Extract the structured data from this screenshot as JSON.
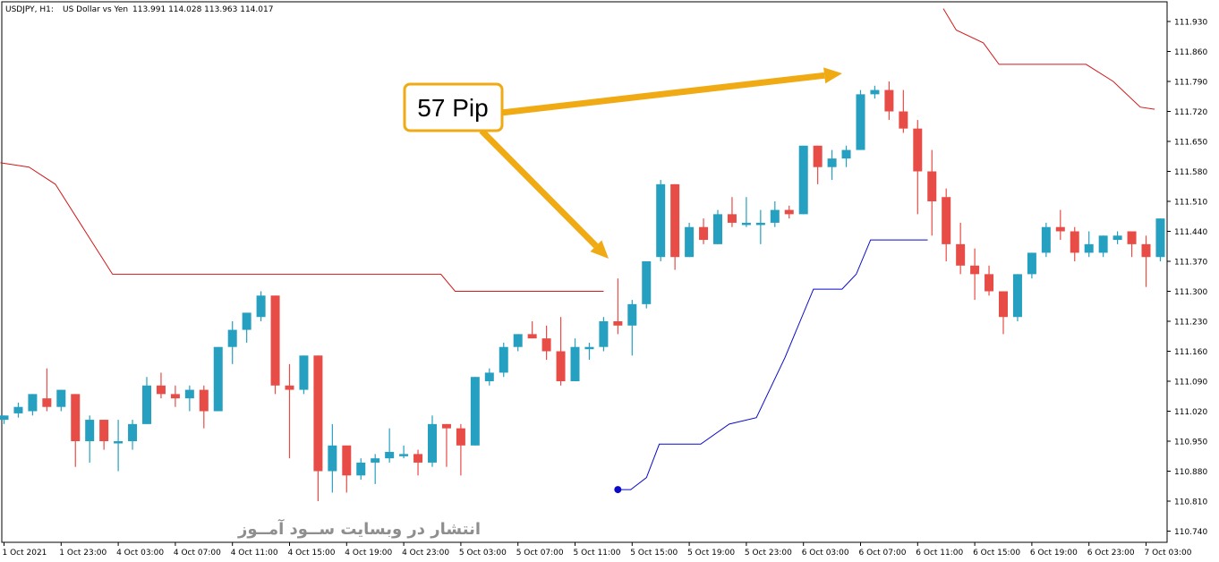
{
  "chart_data": {
    "type": "candlestick",
    "header": {
      "symbol": "USDJPY, H1:",
      "description": "US Dollar vs Yen",
      "ohlc": "113.991 114.028 113.963 114.017"
    },
    "ylim": [
      110.68,
      111.955
    ],
    "y_ticks": [
      "111.930",
      "111.860",
      "111.790",
      "111.720",
      "111.650",
      "111.580",
      "111.510",
      "111.440",
      "111.370",
      "111.300",
      "111.230",
      "111.160",
      "111.090",
      "111.020",
      "110.950",
      "110.880",
      "110.810",
      "110.740"
    ],
    "x_ticks": [
      "1 Oct 2021",
      "1 Oct 23:00",
      "4 Oct 03:00",
      "4 Oct 07:00",
      "4 Oct 11:00",
      "4 Oct 15:00",
      "4 Oct 19:00",
      "4 Oct 23:00",
      "5 Oct 03:00",
      "5 Oct 07:00",
      "5 Oct 11:00",
      "5 Oct 15:00",
      "5 Oct 19:00",
      "5 Oct 23:00",
      "6 Oct 03:00",
      "6 Oct 07:00",
      "6 Oct 11:00",
      "6 Oct 15:00",
      "6 Oct 19:00",
      "6 Oct 23:00",
      "7 Oct 03:00"
    ],
    "colors": {
      "bull": "#26a0c0",
      "bear": "#e84c46",
      "upper_line": "#d11a1a",
      "lower_line": "#0a0ac8",
      "arrow": "#f0aa14",
      "grid_axis": "#000000"
    },
    "candles": [
      {
        "o": 111.0,
        "h": 111.01,
        "l": 110.99,
        "c": 111.01
      },
      {
        "o": 111.015,
        "h": 111.04,
        "l": 111.005,
        "c": 111.03
      },
      {
        "o": 111.02,
        "h": 111.06,
        "l": 111.01,
        "c": 111.06
      },
      {
        "o": 111.05,
        "h": 111.12,
        "l": 111.02,
        "c": 111.03
      },
      {
        "o": 111.03,
        "h": 111.07,
        "l": 111.02,
        "c": 111.07
      },
      {
        "o": 111.06,
        "h": 111.06,
        "l": 110.89,
        "c": 110.95
      },
      {
        "o": 110.95,
        "h": 111.01,
        "l": 110.9,
        "c": 111.0
      },
      {
        "o": 111.0,
        "h": 111.0,
        "l": 110.93,
        "c": 110.95
      },
      {
        "o": 110.95,
        "h": 111.0,
        "l": 110.88,
        "c": 110.95
      },
      {
        "o": 110.95,
        "h": 111.0,
        "l": 110.93,
        "c": 110.99
      },
      {
        "o": 110.99,
        "h": 111.1,
        "l": 110.99,
        "c": 111.08
      },
      {
        "o": 111.08,
        "h": 111.11,
        "l": 111.05,
        "c": 111.06
      },
      {
        "o": 111.06,
        "h": 111.08,
        "l": 111.03,
        "c": 111.05
      },
      {
        "o": 111.05,
        "h": 111.08,
        "l": 111.02,
        "c": 111.07
      },
      {
        "o": 111.07,
        "h": 111.08,
        "l": 110.98,
        "c": 111.02
      },
      {
        "o": 111.02,
        "h": 111.17,
        "l": 111.02,
        "c": 111.17
      },
      {
        "o": 111.17,
        "h": 111.23,
        "l": 111.13,
        "c": 111.21
      },
      {
        "o": 111.21,
        "h": 111.25,
        "l": 111.18,
        "c": 111.25
      },
      {
        "o": 111.24,
        "h": 111.3,
        "l": 111.23,
        "c": 111.29
      },
      {
        "o": 111.29,
        "h": 111.29,
        "l": 111.06,
        "c": 111.08
      },
      {
        "o": 111.08,
        "h": 111.13,
        "l": 110.91,
        "c": 111.07
      },
      {
        "o": 111.07,
        "h": 111.15,
        "l": 111.06,
        "c": 111.15
      },
      {
        "o": 111.15,
        "h": 111.15,
        "l": 110.81,
        "c": 110.88
      },
      {
        "o": 110.88,
        "h": 110.99,
        "l": 110.83,
        "c": 110.94
      },
      {
        "o": 110.94,
        "h": 110.94,
        "l": 110.83,
        "c": 110.87
      },
      {
        "o": 110.87,
        "h": 110.91,
        "l": 110.86,
        "c": 110.9
      },
      {
        "o": 110.9,
        "h": 110.92,
        "l": 110.85,
        "c": 110.91
      },
      {
        "o": 110.91,
        "h": 110.98,
        "l": 110.9,
        "c": 110.925
      },
      {
        "o": 110.92,
        "h": 110.94,
        "l": 110.91,
        "c": 110.92
      },
      {
        "o": 110.92,
        "h": 110.93,
        "l": 110.87,
        "c": 110.9
      },
      {
        "o": 110.9,
        "h": 111.01,
        "l": 110.89,
        "c": 110.99
      },
      {
        "o": 110.99,
        "h": 110.99,
        "l": 110.89,
        "c": 110.98
      },
      {
        "o": 110.98,
        "h": 110.99,
        "l": 110.87,
        "c": 110.94
      },
      {
        "o": 110.94,
        "h": 111.1,
        "l": 110.94,
        "c": 111.1
      },
      {
        "o": 111.09,
        "h": 111.12,
        "l": 111.08,
        "c": 111.11
      },
      {
        "o": 111.11,
        "h": 111.18,
        "l": 111.1,
        "c": 111.17
      },
      {
        "o": 111.17,
        "h": 111.2,
        "l": 111.16,
        "c": 111.2
      },
      {
        "o": 111.2,
        "h": 111.23,
        "l": 111.19,
        "c": 111.19
      },
      {
        "o": 111.19,
        "h": 111.22,
        "l": 111.14,
        "c": 111.16
      },
      {
        "o": 111.16,
        "h": 111.24,
        "l": 111.08,
        "c": 111.09
      },
      {
        "o": 111.09,
        "h": 111.19,
        "l": 111.09,
        "c": 111.17
      },
      {
        "o": 111.17,
        "h": 111.18,
        "l": 111.14,
        "c": 111.17
      },
      {
        "o": 111.17,
        "h": 111.24,
        "l": 111.16,
        "c": 111.23
      },
      {
        "o": 111.23,
        "h": 111.33,
        "l": 111.2,
        "c": 111.22
      },
      {
        "o": 111.22,
        "h": 111.28,
        "l": 111.15,
        "c": 111.27
      },
      {
        "o": 111.27,
        "h": 111.37,
        "l": 111.26,
        "c": 111.37
      },
      {
        "o": 111.38,
        "h": 111.56,
        "l": 111.37,
        "c": 111.55
      },
      {
        "o": 111.55,
        "h": 111.55,
        "l": 111.35,
        "c": 111.38
      },
      {
        "o": 111.38,
        "h": 111.46,
        "l": 111.38,
        "c": 111.45
      },
      {
        "o": 111.45,
        "h": 111.47,
        "l": 111.41,
        "c": 111.42
      },
      {
        "o": 111.41,
        "h": 111.49,
        "l": 111.41,
        "c": 111.48
      },
      {
        "o": 111.48,
        "h": 111.52,
        "l": 111.45,
        "c": 111.46
      },
      {
        "o": 111.46,
        "h": 111.52,
        "l": 111.45,
        "c": 111.46
      },
      {
        "o": 111.46,
        "h": 111.49,
        "l": 111.41,
        "c": 111.46
      },
      {
        "o": 111.46,
        "h": 111.51,
        "l": 111.45,
        "c": 111.49
      },
      {
        "o": 111.49,
        "h": 111.5,
        "l": 111.47,
        "c": 111.48
      },
      {
        "o": 111.48,
        "h": 111.64,
        "l": 111.48,
        "c": 111.64
      },
      {
        "o": 111.64,
        "h": 111.64,
        "l": 111.55,
        "c": 111.59
      },
      {
        "o": 111.59,
        "h": 111.63,
        "l": 111.56,
        "c": 111.61
      },
      {
        "o": 111.61,
        "h": 111.64,
        "l": 111.59,
        "c": 111.63
      },
      {
        "o": 111.63,
        "h": 111.77,
        "l": 111.63,
        "c": 111.76
      },
      {
        "o": 111.76,
        "h": 111.78,
        "l": 111.75,
        "c": 111.77
      },
      {
        "o": 111.77,
        "h": 111.79,
        "l": 111.7,
        "c": 111.72
      },
      {
        "o": 111.72,
        "h": 111.77,
        "l": 111.67,
        "c": 111.68
      },
      {
        "o": 111.68,
        "h": 111.7,
        "l": 111.48,
        "c": 111.58
      },
      {
        "o": 111.58,
        "h": 111.63,
        "l": 111.43,
        "c": 111.51
      },
      {
        "o": 111.52,
        "h": 111.54,
        "l": 111.37,
        "c": 111.41
      },
      {
        "o": 111.41,
        "h": 111.46,
        "l": 111.34,
        "c": 111.36
      },
      {
        "o": 111.36,
        "h": 111.4,
        "l": 111.28,
        "c": 111.34
      },
      {
        "o": 111.34,
        "h": 111.36,
        "l": 111.29,
        "c": 111.3
      },
      {
        "o": 111.3,
        "h": 111.3,
        "l": 111.2,
        "c": 111.24
      },
      {
        "o": 111.24,
        "h": 111.34,
        "l": 111.23,
        "c": 111.34
      },
      {
        "o": 111.34,
        "h": 111.39,
        "l": 111.33,
        "c": 111.39
      },
      {
        "o": 111.39,
        "h": 111.46,
        "l": 111.38,
        "c": 111.45
      },
      {
        "o": 111.45,
        "h": 111.49,
        "l": 111.42,
        "c": 111.44
      },
      {
        "o": 111.44,
        "h": 111.45,
        "l": 111.37,
        "c": 111.39
      },
      {
        "o": 111.39,
        "h": 111.44,
        "l": 111.38,
        "c": 111.41
      },
      {
        "o": 111.39,
        "h": 111.43,
        "l": 111.38,
        "c": 111.43
      },
      {
        "o": 111.42,
        "h": 111.44,
        "l": 111.41,
        "c": 111.43
      },
      {
        "o": 111.44,
        "h": 111.44,
        "l": 111.38,
        "c": 111.41
      },
      {
        "o": 111.41,
        "h": 111.43,
        "l": 111.31,
        "c": 111.38
      },
      {
        "o": 111.38,
        "h": 111.47,
        "l": 111.37,
        "c": 111.47
      }
    ],
    "upper_line": [
      {
        "i": -0.25,
        "v": 111.6
      },
      {
        "i": 1.75,
        "v": 111.59
      },
      {
        "i": 3.6,
        "v": 111.55
      },
      {
        "i": 5.5,
        "v": 111.45
      },
      {
        "i": 7.6,
        "v": 111.34
      },
      {
        "i": 30.6,
        "v": 111.34
      },
      {
        "i": 31.6,
        "v": 111.3
      },
      {
        "i": 42.0,
        "v": 111.3
      }
    ],
    "upper_line_2": [
      {
        "i": 65.8,
        "v": 111.96
      },
      {
        "i": 66.7,
        "v": 111.91
      },
      {
        "i": 68.6,
        "v": 111.88
      },
      {
        "i": 69.7,
        "v": 111.83
      },
      {
        "i": 75.8,
        "v": 111.83
      },
      {
        "i": 77.7,
        "v": 111.79
      },
      {
        "i": 79.6,
        "v": 111.73
      },
      {
        "i": 80.6,
        "v": 111.725
      }
    ],
    "lower_line": [
      {
        "i": 43.0,
        "v": 110.837
      },
      {
        "i": 43.9,
        "v": 110.837
      },
      {
        "i": 45.0,
        "v": 110.865
      },
      {
        "i": 45.9,
        "v": 110.943
      },
      {
        "i": 48.8,
        "v": 110.943
      },
      {
        "i": 50.8,
        "v": 110.99
      },
      {
        "i": 52.7,
        "v": 111.005
      },
      {
        "i": 54.7,
        "v": 111.145
      },
      {
        "i": 56.7,
        "v": 111.305
      },
      {
        "i": 58.7,
        "v": 111.305
      },
      {
        "i": 59.7,
        "v": 111.34
      },
      {
        "i": 60.7,
        "v": 111.42
      },
      {
        "i": 64.7,
        "v": 111.42
      }
    ],
    "callout": {
      "label": "57 Pip"
    },
    "watermark": "انتشار در وبسایت  ســود آمــوز"
  }
}
